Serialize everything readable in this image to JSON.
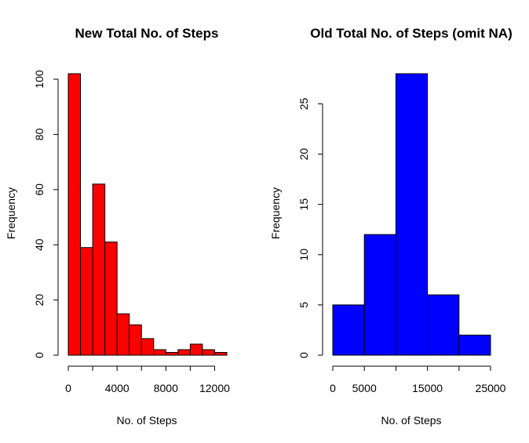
{
  "chart_data": [
    {
      "type": "bar",
      "title": "New Total No. of Steps",
      "xlabel": "No. of Steps",
      "ylabel": "Frequency",
      "color": "#ff0000",
      "bin_edges": [
        0,
        1000,
        2000,
        3000,
        4000,
        5000,
        6000,
        7000,
        8000,
        9000,
        10000,
        11000,
        12000,
        13000
      ],
      "values": [
        102,
        39,
        62,
        41,
        15,
        11,
        6,
        2,
        1,
        2,
        4,
        2,
        1
      ],
      "xlim": [
        0,
        13000
      ],
      "ylim": [
        0,
        102
      ],
      "xticks": [
        0,
        2000,
        4000,
        6000,
        8000,
        10000,
        12000
      ],
      "xtick_labels": [
        "0",
        "",
        "4000",
        "",
        "8000",
        "",
        "12000"
      ],
      "yticks": [
        0,
        20,
        40,
        60,
        80,
        100
      ],
      "ytick_labels": [
        "0",
        "20",
        "40",
        "60",
        "80",
        "100"
      ],
      "grid": false,
      "legend": "none"
    },
    {
      "type": "bar",
      "title": "Old Total No. of Steps (omit NA)",
      "xlabel": "No. of Steps",
      "ylabel": "Frequency",
      "color": "#0000ff",
      "bin_edges": [
        0,
        5000,
        10000,
        15000,
        20000,
        25000
      ],
      "values": [
        5,
        12,
        28,
        6,
        2
      ],
      "xlim": [
        0,
        25000
      ],
      "ylim": [
        0,
        28
      ],
      "xticks": [
        0,
        5000,
        10000,
        15000,
        20000,
        25000
      ],
      "xtick_labels": [
        "0",
        "5000",
        "",
        "15000",
        "",
        "25000"
      ],
      "yticks": [
        0,
        5,
        10,
        15,
        20,
        25
      ],
      "ytick_labels": [
        "0",
        "5",
        "10",
        "15",
        "20",
        "25"
      ],
      "grid": false,
      "legend": "none"
    }
  ]
}
